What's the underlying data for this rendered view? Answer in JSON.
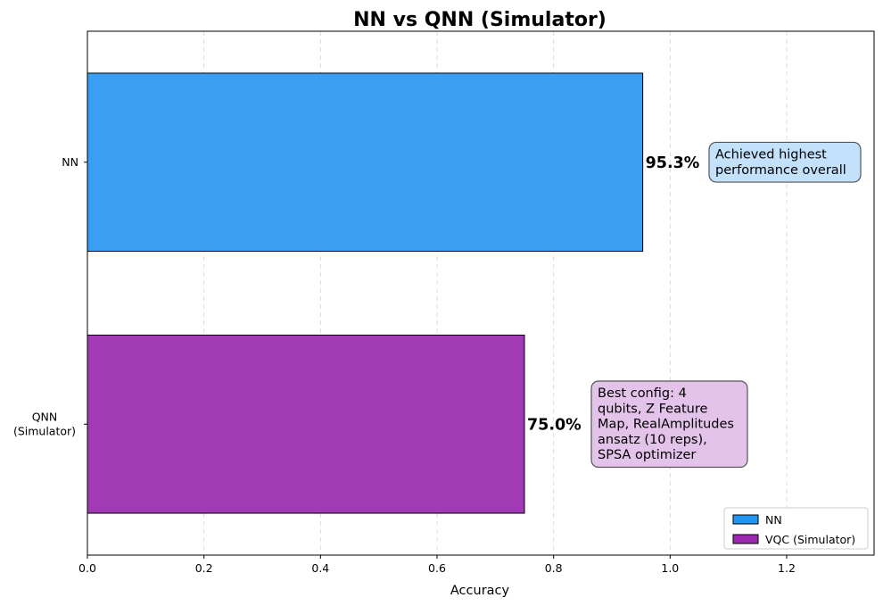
{
  "chart_data": {
    "type": "bar",
    "orientation": "horizontal",
    "title": "NN vs QNN (Simulator)",
    "xlabel": "Accuracy",
    "ylabel": "",
    "xlim": [
      0,
      1.35
    ],
    "x_ticks": [
      "0.0",
      "0.2",
      "0.4",
      "0.6",
      "0.8",
      "1.0",
      "1.2"
    ],
    "categories": [
      "NN",
      "QNN\n(Simulator)"
    ],
    "values": [
      0.953,
      0.75
    ],
    "value_labels": [
      "95.3%",
      "75.0%"
    ],
    "colors": [
      "#3a9ef3",
      "#a23ab5"
    ],
    "annotations": [
      {
        "lines": [
          "Achieved highest",
          "performance overall"
        ],
        "background": "#c3e1fb"
      },
      {
        "lines": [
          "Best config: 4",
          "qubits, Z Feature",
          "Map, RealAmplitudes",
          "ansatz (10 reps),",
          "SPSA optimizer"
        ],
        "background": "#e4c3ea"
      }
    ],
    "legend": {
      "placement": "lower-right",
      "entries": [
        {
          "label": "NN",
          "color": "#2196f3"
        },
        {
          "label": "VQC (Simulator)",
          "color": "#9c27b0"
        }
      ]
    },
    "grid": "x-dashed"
  }
}
